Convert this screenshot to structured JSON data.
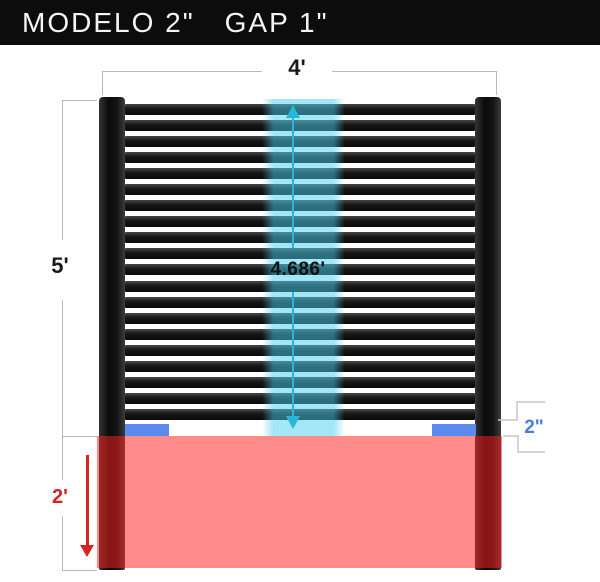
{
  "header": {
    "title_model": "MODELO 2\"",
    "title_gap": "GAP 1\""
  },
  "diagram": {
    "dimensions": {
      "panel_width": "4'",
      "panel_height": "5'",
      "inner_height": "4.686'",
      "burial_depth": "2'",
      "bottom_channel": "2\""
    },
    "fence": {
      "slat_count": 20
    },
    "colors": {
      "header_bg": "#0c0c0c",
      "slat_black": "#161616",
      "highlight_cyan": "#2ab5da",
      "band_cyan": "rgba(72,205,235,0.5)",
      "bracket_blue": "#5b8bef",
      "channel_text_blue": "#4a7de0",
      "ground_red": "rgba(255,30,30,0.52)",
      "burial_text_red": "#d92121",
      "dimension_gray": "#b9b9b9"
    }
  }
}
